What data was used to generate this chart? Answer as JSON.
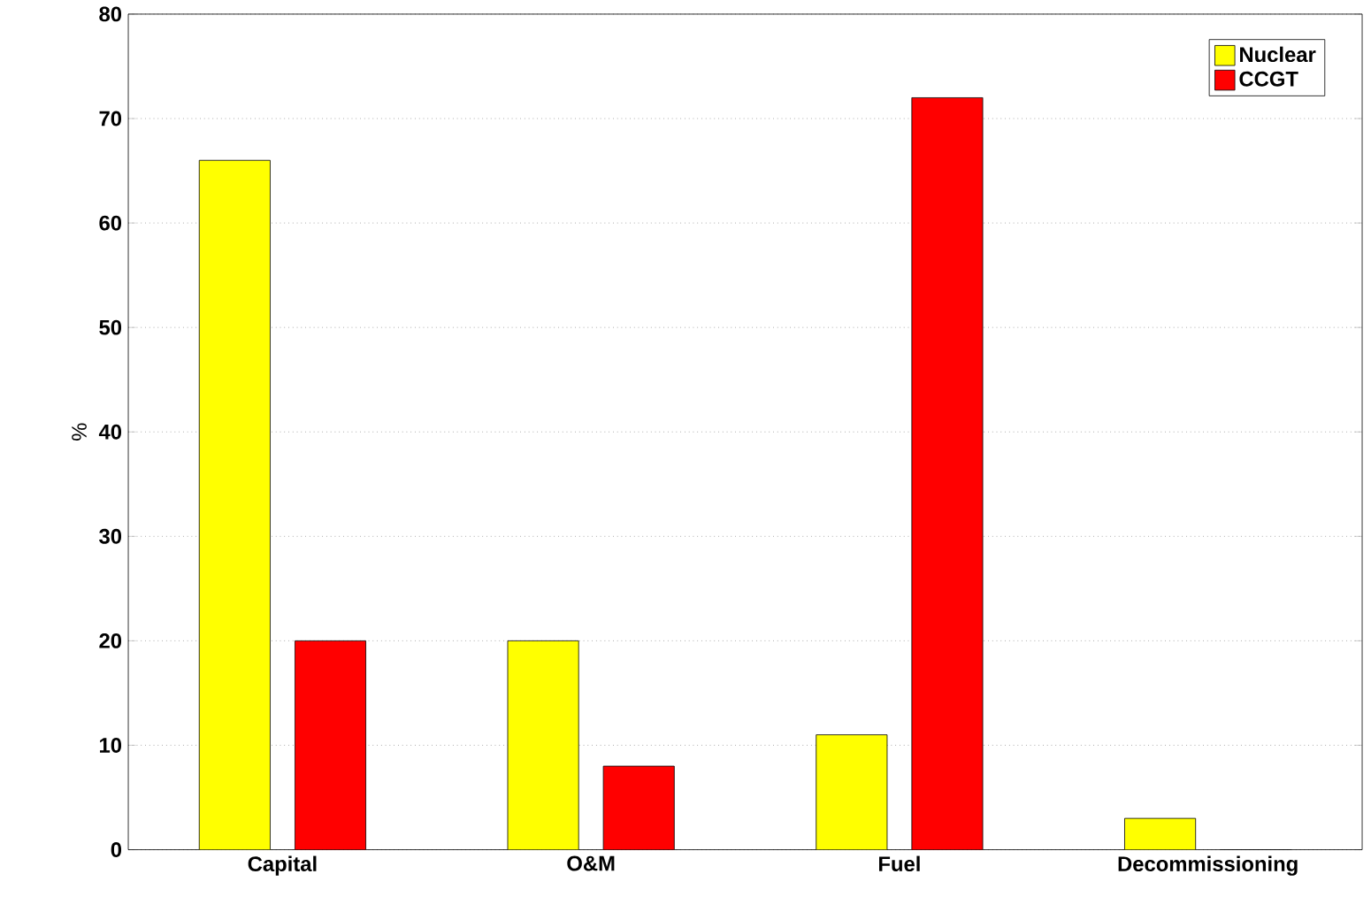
{
  "chart_data": {
    "type": "bar",
    "ylabel": "%",
    "categories": [
      "Capital",
      "O&M",
      "Fuel",
      "Decommissioning"
    ],
    "series": [
      {
        "name": "Nuclear",
        "color": "#ffff00",
        "values": [
          66,
          20,
          11,
          3
        ]
      },
      {
        "name": "CCGT",
        "color": "#ff0000",
        "values": [
          20,
          8,
          72,
          0
        ]
      }
    ],
    "ylim": [
      0,
      80
    ],
    "yticks": [
      0,
      10,
      20,
      30,
      40,
      50,
      60,
      70,
      80
    ],
    "grid": "y",
    "legend": "top right"
  }
}
